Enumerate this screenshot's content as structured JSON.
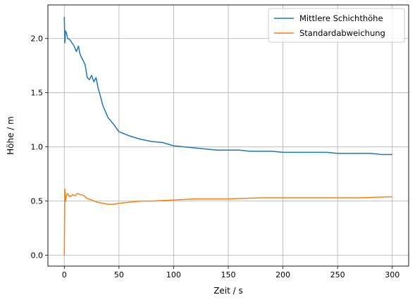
{
  "chart_data": {
    "type": "line",
    "xlabel": "Zeit / s",
    "ylabel": "Höhe / m",
    "xlim": [
      -15,
      315
    ],
    "ylim": [
      -0.1,
      2.31
    ],
    "xticks": [
      0,
      50,
      100,
      150,
      200,
      250,
      300
    ],
    "xtick_labels": [
      "0",
      "50",
      "100",
      "150",
      "200",
      "250",
      "300"
    ],
    "yticks": [
      0.0,
      0.5,
      1.0,
      1.5,
      2.0
    ],
    "ytick_labels": [
      "0.0",
      "0.5",
      "1.0",
      "1.5",
      "2.0"
    ],
    "grid": true,
    "legend_position": "top-right",
    "series": [
      {
        "name": "Mittlere Schichthöhe",
        "color": "#1f77b4",
        "x": [
          0,
          0.5,
          1,
          2,
          3,
          5,
          7,
          9,
          11,
          13,
          14,
          15,
          17,
          19,
          20,
          21,
          23,
          25,
          27,
          29,
          31,
          33,
          35,
          37,
          40,
          45,
          50,
          55,
          60,
          70,
          80,
          90,
          100,
          110,
          120,
          130,
          140,
          150,
          160,
          170,
          180,
          190,
          200,
          210,
          220,
          230,
          240,
          250,
          260,
          270,
          280,
          290,
          300
        ],
        "y": [
          2.2,
          1.96,
          2.07,
          2.05,
          2.0,
          1.99,
          1.96,
          1.93,
          1.88,
          1.93,
          1.87,
          1.84,
          1.8,
          1.76,
          1.7,
          1.64,
          1.62,
          1.66,
          1.6,
          1.64,
          1.54,
          1.47,
          1.39,
          1.34,
          1.27,
          1.21,
          1.14,
          1.12,
          1.1,
          1.07,
          1.05,
          1.04,
          1.01,
          1.0,
          0.99,
          0.98,
          0.97,
          0.97,
          0.97,
          0.96,
          0.96,
          0.96,
          0.95,
          0.95,
          0.95,
          0.95,
          0.95,
          0.94,
          0.94,
          0.94,
          0.94,
          0.93,
          0.93
        ]
      },
      {
        "name": "Standardabweichung",
        "color": "#ff7f0e",
        "x": [
          0,
          0.5,
          1,
          2,
          3,
          5,
          8,
          10,
          12,
          15,
          18,
          20,
          22,
          25,
          30,
          35,
          40,
          45,
          50,
          60,
          70,
          80,
          100,
          120,
          150,
          180,
          200,
          220,
          250,
          270,
          300
        ],
        "y": [
          0.0,
          0.61,
          0.5,
          0.55,
          0.57,
          0.54,
          0.56,
          0.55,
          0.57,
          0.56,
          0.55,
          0.53,
          0.52,
          0.51,
          0.49,
          0.48,
          0.47,
          0.47,
          0.48,
          0.49,
          0.5,
          0.5,
          0.51,
          0.52,
          0.52,
          0.53,
          0.53,
          0.53,
          0.53,
          0.53,
          0.54
        ]
      }
    ]
  }
}
